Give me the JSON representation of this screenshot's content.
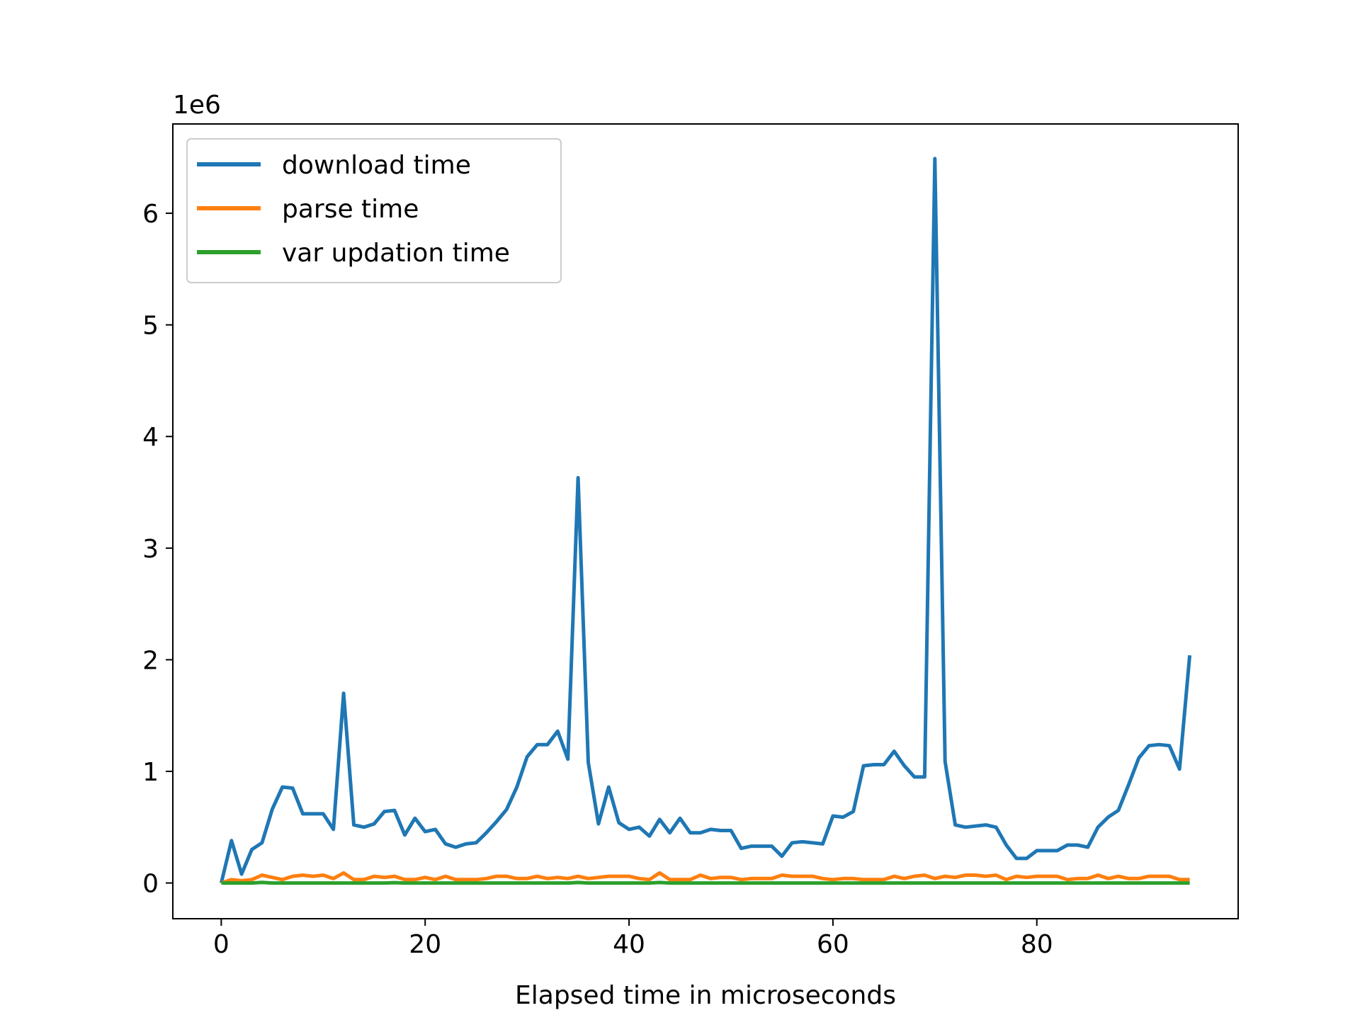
{
  "chart_data": {
    "type": "line",
    "title": "",
    "xlabel": "Elapsed time in microseconds",
    "ylabel": "",
    "y_offset_label": "1e6",
    "y_scale_factor": 1000000,
    "xlim": [
      -4.75,
      99.75
    ],
    "ylim": [
      -0.32,
      6.8
    ],
    "xticks": [
      0,
      20,
      40,
      60,
      80
    ],
    "yticks": [
      0,
      1,
      2,
      3,
      4,
      5,
      6
    ],
    "grid": false,
    "legend_position": "upper-left",
    "series": [
      {
        "name": "download time",
        "color": "#1f77b4",
        "x": [
          0,
          1,
          2,
          3,
          4,
          5,
          6,
          7,
          8,
          9,
          10,
          11,
          12,
          13,
          14,
          15,
          16,
          17,
          18,
          19,
          20,
          21,
          22,
          23,
          24,
          25,
          26,
          27,
          28,
          29,
          30,
          31,
          32,
          33,
          34,
          35,
          36,
          37,
          38,
          39,
          40,
          41,
          42,
          43,
          44,
          45,
          46,
          47,
          48,
          49,
          50,
          51,
          52,
          53,
          54,
          55,
          56,
          57,
          58,
          59,
          60,
          61,
          62,
          63,
          64,
          65,
          66,
          67,
          68,
          69,
          70,
          71,
          72,
          73,
          74,
          75,
          76,
          77,
          78,
          79,
          80,
          81,
          82,
          83,
          84,
          85,
          86,
          87,
          88,
          89,
          90,
          91,
          92,
          93,
          94,
          95
        ],
        "values": [
          0.0,
          0.38,
          0.08,
          0.3,
          0.36,
          0.66,
          0.86,
          0.85,
          0.62,
          0.62,
          0.62,
          0.48,
          1.7,
          0.52,
          0.5,
          0.53,
          0.64,
          0.65,
          0.43,
          0.58,
          0.46,
          0.48,
          0.35,
          0.32,
          0.35,
          0.36,
          0.45,
          0.55,
          0.66,
          0.86,
          1.13,
          1.24,
          1.24,
          1.36,
          1.11,
          3.63,
          1.08,
          0.53,
          0.86,
          0.54,
          0.48,
          0.5,
          0.42,
          0.57,
          0.45,
          0.58,
          0.45,
          0.45,
          0.48,
          0.47,
          0.47,
          0.31,
          0.33,
          0.33,
          0.33,
          0.24,
          0.36,
          0.37,
          0.36,
          0.35,
          0.6,
          0.59,
          0.64,
          1.05,
          1.06,
          1.06,
          1.18,
          1.05,
          0.95,
          0.95,
          6.49,
          1.09,
          0.52,
          0.5,
          0.51,
          0.52,
          0.5,
          0.34,
          0.22,
          0.22,
          0.29,
          0.29,
          0.29,
          0.34,
          0.34,
          0.32,
          0.5,
          0.59,
          0.65,
          0.88,
          1.12,
          1.23,
          1.24,
          1.23,
          1.02,
          2.04
        ]
      },
      {
        "name": "parse time",
        "color": "#ff7f0e",
        "x": [
          0,
          1,
          2,
          3,
          4,
          5,
          6,
          7,
          8,
          9,
          10,
          11,
          12,
          13,
          14,
          15,
          16,
          17,
          18,
          19,
          20,
          21,
          22,
          23,
          24,
          25,
          26,
          27,
          28,
          29,
          30,
          31,
          32,
          33,
          34,
          35,
          36,
          37,
          38,
          39,
          40,
          41,
          42,
          43,
          44,
          45,
          46,
          47,
          48,
          49,
          50,
          51,
          52,
          53,
          54,
          55,
          56,
          57,
          58,
          59,
          60,
          61,
          62,
          63,
          64,
          65,
          66,
          67,
          68,
          69,
          70,
          71,
          72,
          73,
          74,
          75,
          76,
          77,
          78,
          79,
          80,
          81,
          82,
          83,
          84,
          85,
          86,
          87,
          88,
          89,
          90,
          91,
          92,
          93,
          94,
          95
        ],
        "values": [
          0.0,
          0.03,
          0.02,
          0.03,
          0.07,
          0.05,
          0.03,
          0.06,
          0.07,
          0.06,
          0.07,
          0.04,
          0.09,
          0.03,
          0.03,
          0.06,
          0.05,
          0.06,
          0.03,
          0.03,
          0.05,
          0.03,
          0.06,
          0.03,
          0.03,
          0.03,
          0.04,
          0.06,
          0.06,
          0.04,
          0.04,
          0.06,
          0.04,
          0.05,
          0.04,
          0.06,
          0.04,
          0.05,
          0.06,
          0.06,
          0.06,
          0.04,
          0.03,
          0.09,
          0.03,
          0.03,
          0.03,
          0.07,
          0.04,
          0.05,
          0.05,
          0.03,
          0.04,
          0.04,
          0.04,
          0.07,
          0.06,
          0.06,
          0.06,
          0.04,
          0.03,
          0.04,
          0.04,
          0.03,
          0.03,
          0.03,
          0.06,
          0.04,
          0.06,
          0.07,
          0.04,
          0.06,
          0.05,
          0.07,
          0.07,
          0.06,
          0.07,
          0.03,
          0.06,
          0.05,
          0.06,
          0.06,
          0.06,
          0.03,
          0.04,
          0.04,
          0.07,
          0.04,
          0.06,
          0.04,
          0.04,
          0.06,
          0.06,
          0.06,
          0.03,
          0.03
        ]
      },
      {
        "name": "var updation time",
        "color": "#2ca02c",
        "x": [
          0,
          1,
          2,
          3,
          4,
          5,
          6,
          7,
          8,
          9,
          10,
          11,
          12,
          13,
          14,
          15,
          16,
          17,
          18,
          19,
          20,
          21,
          22,
          23,
          24,
          25,
          26,
          27,
          28,
          29,
          30,
          31,
          32,
          33,
          34,
          35,
          36,
          37,
          38,
          39,
          40,
          41,
          42,
          43,
          44,
          45,
          46,
          47,
          48,
          49,
          50,
          51,
          52,
          53,
          54,
          55,
          56,
          57,
          58,
          59,
          60,
          61,
          62,
          63,
          64,
          65,
          66,
          67,
          68,
          69,
          70,
          71,
          72,
          73,
          74,
          75,
          76,
          77,
          78,
          79,
          80,
          81,
          82,
          83,
          84,
          85,
          86,
          87,
          88,
          89,
          90,
          91,
          92,
          93,
          94,
          95
        ],
        "values": [
          0,
          0,
          0,
          0,
          0.005,
          0,
          0,
          0,
          0,
          0,
          0,
          0,
          0,
          0,
          0,
          0,
          0,
          0.003,
          0,
          0,
          0,
          0,
          0,
          0,
          0,
          0,
          0,
          0,
          0,
          0,
          0,
          0,
          0,
          0,
          0,
          0.004,
          0,
          0,
          0,
          0,
          0,
          0,
          0,
          0.004,
          0,
          0,
          0,
          0,
          0,
          0,
          0,
          0,
          0,
          0,
          0,
          0,
          0,
          0,
          0,
          0,
          0,
          0,
          0,
          0,
          0,
          0,
          0,
          0,
          0,
          0,
          0,
          0,
          0,
          0,
          0,
          0,
          0,
          0,
          0,
          0,
          0,
          0,
          0,
          0,
          0,
          0,
          0,
          0,
          0,
          0,
          0,
          0,
          0,
          0,
          0,
          0
        ]
      }
    ]
  }
}
